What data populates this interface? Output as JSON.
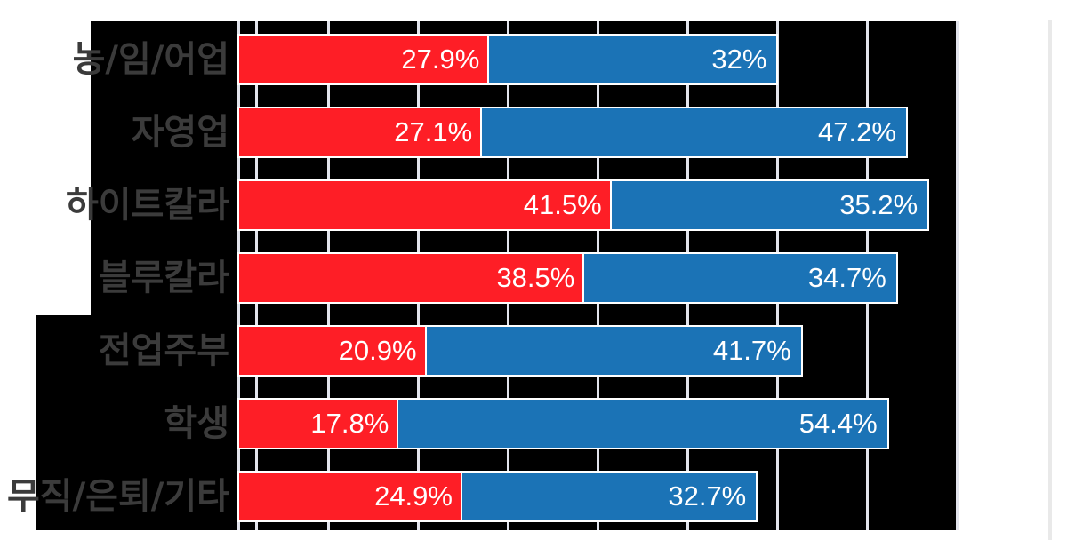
{
  "chart_data": {
    "type": "bar",
    "orientation": "horizontal-stacked",
    "title": "",
    "xlabel": "",
    "ylabel": "",
    "xlim": [
      0,
      80
    ],
    "grid": true,
    "gridline_values": [
      0,
      2,
      10,
      20,
      30,
      40,
      50,
      60,
      70,
      80
    ],
    "legend": "none",
    "categories": [
      "농/임/어업",
      "자영업",
      "하이트칼라",
      "블루칼라",
      "전업주부",
      "학생",
      "무직/은퇴/기타"
    ],
    "series": [
      {
        "name": "red-segment",
        "color": "#fe1e26",
        "values": [
          27.9,
          27.1,
          41.5,
          38.5,
          20.9,
          17.8,
          24.9
        ],
        "labels": [
          "27.9%",
          "27.1%",
          "41.5%",
          "38.5%",
          "20.9%",
          "17.8%",
          "24.9%"
        ]
      },
      {
        "name": "blue-segment",
        "color": "#1b73b6",
        "values": [
          32,
          47.2,
          35.2,
          34.7,
          41.7,
          54.4,
          32.7
        ],
        "labels": [
          "32%",
          "47.2%",
          "35.2%",
          "34.7%",
          "41.7%",
          "54.4%",
          "32.7%"
        ]
      }
    ]
  },
  "colors": {
    "page_background": "#ffffff",
    "plot_background": "#000000",
    "gridline": "#e2e4ec",
    "bar_border": "#ffffff",
    "value_text": "#ffffff",
    "category_text": "#3b3b3b",
    "scrollbar": "#e9e9e9"
  }
}
